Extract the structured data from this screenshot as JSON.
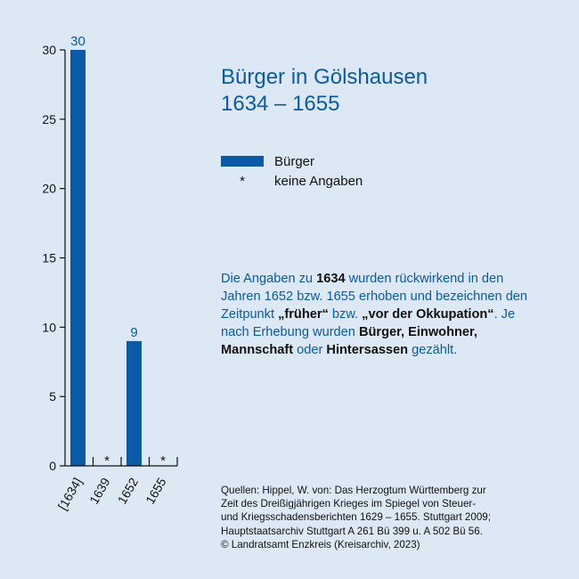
{
  "title": {
    "line1": "Bürger in Gölshausen",
    "line2": "1634 – 1655"
  },
  "legend": [
    {
      "symbol": "bar",
      "label": "Bürger"
    },
    {
      "symbol": "*",
      "label": "keine Angaben"
    }
  ],
  "note": {
    "p1": "Die Angaben zu ",
    "b1": "1634",
    "p2": " wurden rückwirkend in den Jahren 1652 bzw. 1655 erhoben und bezeichnen den Zeitpunkt ",
    "b2": "„früher“",
    "p3": " bzw. ",
    "b3": "„vor der Okkupation“",
    "p4": ". Je nach Erhebung wurden ",
    "b4": "Bürger, Einwohner, Mannschaft",
    "p5": " oder ",
    "b5": "Hintersassen",
    "p6": " gezählt."
  },
  "source": [
    "Quellen: Hippel, W. von: Das Herzogtum Württemberg zur",
    "Zeit des Dreißigjährigen Krieges im Spiegel von Steuer-",
    "und Kriegsschadensberichten 1629 – 1655. Stuttgart 2009;",
    "Hauptstaatsarchiv Stuttgart A 261 Bü 399 u. A 502 Bü 56.",
    "© Landratsamt Enzkreis (Kreisarchiv, 2023)"
  ],
  "colors": {
    "bar": "#0a5aa8",
    "label": "#0a5aa8",
    "axis": "#111111",
    "background": "#dce8f4"
  },
  "chart_data": {
    "type": "bar",
    "categories": [
      "[1634]",
      "1639",
      "1652",
      "1655"
    ],
    "values": [
      30,
      null,
      9,
      null
    ],
    "missing_marker": "*",
    "data_labels": [
      "30",
      "",
      "9",
      ""
    ],
    "title": "Bürger in Gölshausen 1634 – 1655",
    "xlabel": "",
    "ylabel": "",
    "ylim": [
      0,
      30
    ],
    "yticks": [
      0,
      5,
      10,
      15,
      20,
      25,
      30
    ],
    "grid": false,
    "legend_position": "right"
  }
}
